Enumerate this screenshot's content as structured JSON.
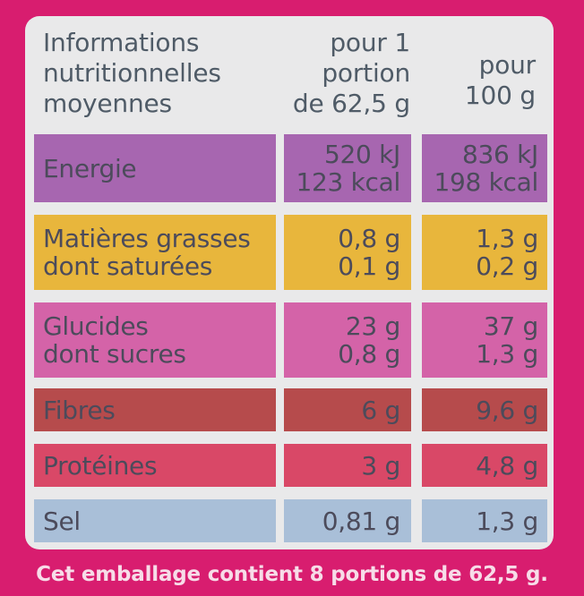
{
  "header": {
    "col1_line1": "Informations",
    "col1_line2": "nutritionnelles",
    "col1_line3": "moyennes",
    "col2_line1": "pour 1",
    "col2_line2": "portion",
    "col2_line3": "de 62,5 g",
    "col3_line1": "pour",
    "col3_line2": "100 g"
  },
  "rows": [
    {
      "label_1": "Energie",
      "label_2": "",
      "portion_1": "520 kJ",
      "portion_2": "123 kcal",
      "per100_1": "836 kJ",
      "per100_2": "198 kcal"
    },
    {
      "label_1": "Matières grasses",
      "label_2": "dont saturées",
      "portion_1": "0,8 g",
      "portion_2": "0,1 g",
      "per100_1": "1,3 g",
      "per100_2": "0,2 g"
    },
    {
      "label_1": "Glucides",
      "label_2": "dont sucres",
      "portion_1": "23 g",
      "portion_2": "0,8 g",
      "per100_1": "37 g",
      "per100_2": "1,3 g"
    },
    {
      "label_1": "Fibres",
      "label_2": "",
      "portion_1": "6 g",
      "portion_2": "",
      "per100_1": "9,6 g",
      "per100_2": ""
    },
    {
      "label_1": "Protéines",
      "label_2": "",
      "portion_1": "3 g",
      "portion_2": "",
      "per100_1": "4,8 g",
      "per100_2": ""
    },
    {
      "label_1": "Sel",
      "label_2": "",
      "portion_1": "0,81 g",
      "portion_2": "",
      "per100_1": "1,3 g",
      "per100_2": ""
    }
  ],
  "footer": {
    "text": "Cet emballage contient 8 portions de 62,5 g."
  },
  "colors": {
    "background": "#d81d6f",
    "panel": "#e9e9ea",
    "energie": "#a766b0",
    "matieres_grasses": "#e8b63c",
    "glucides": "#d463a8",
    "fibres": "#b64b4c",
    "proteines": "#d94867",
    "sel": "#a9bfd8"
  }
}
